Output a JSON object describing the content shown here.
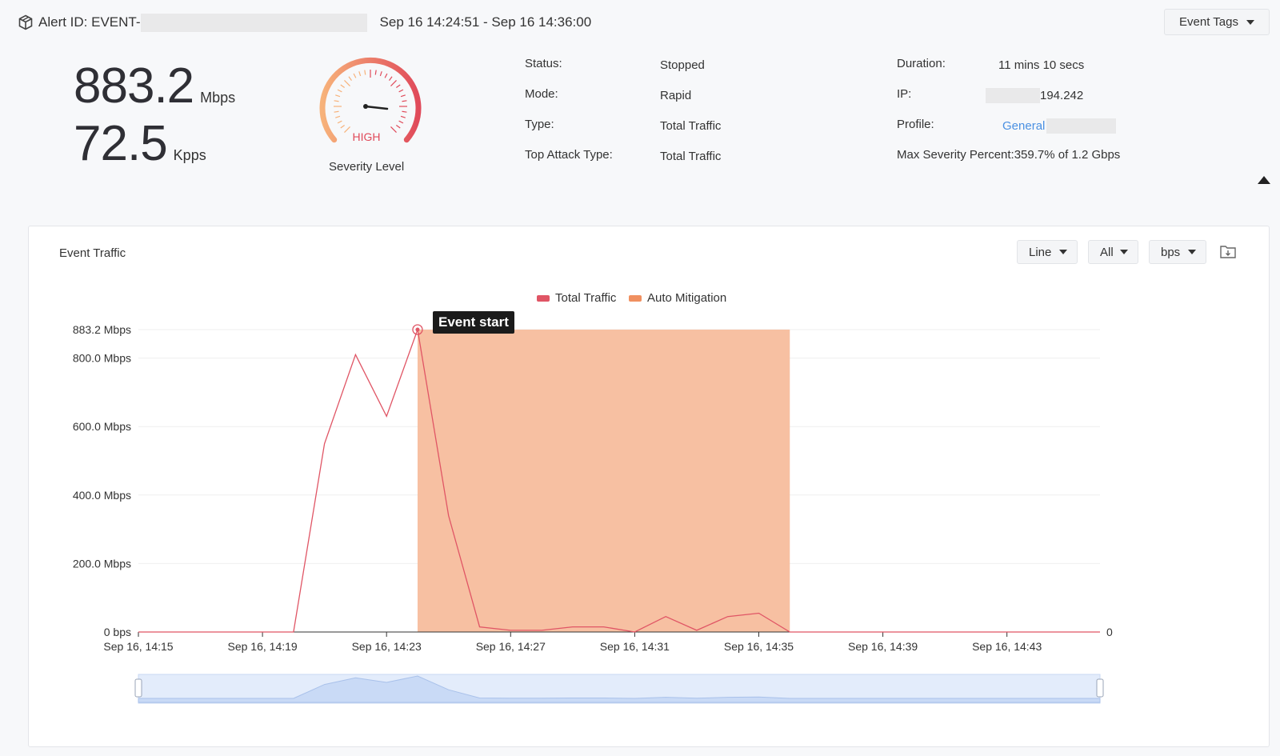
{
  "header": {
    "alert_label": "Alert ID: EVENT-",
    "time_range": "Sep 16 14:24:51 - Sep 16 14:36:00",
    "event_tags_label": "Event Tags"
  },
  "metrics": {
    "bandwidth_value": "883.2",
    "bandwidth_unit": "Mbps",
    "packet_value": "72.5",
    "packet_unit": "Kpps"
  },
  "severity": {
    "level_text": "HIGH",
    "label": "Severity Level",
    "colors": {
      "start": "#f7b27a",
      "end": "#e04a5a"
    }
  },
  "details_left": [
    {
      "label": "Status:",
      "value": "Stopped"
    },
    {
      "label": "Mode:",
      "value": "Rapid"
    },
    {
      "label": "Type:",
      "value": "Total Traffic"
    },
    {
      "label": "Top Attack Type:",
      "value": "Total Traffic"
    }
  ],
  "details_right": {
    "duration_label": "Duration:",
    "duration_value": "11 mins 10 secs",
    "ip_label": "IP:",
    "ip_value": "194.242",
    "profile_label": "Profile:",
    "profile_value": "General",
    "max_severity": "Max Severity Percent:359.7% of 1.2 Gbps"
  },
  "panel": {
    "title": "Event Traffic",
    "chart_type_select": "Line",
    "filter_select": "All",
    "unit_select": "bps",
    "download_icon": "download-folder-icon"
  },
  "tooltip": {
    "text": "Event start"
  },
  "chart_data": {
    "type": "line",
    "legend": [
      {
        "name": "Total Traffic",
        "color": "#e05565"
      },
      {
        "name": "Auto Mitigation",
        "color": "#f09060"
      }
    ],
    "x_tick_labels": [
      "Sep 16, 14:15",
      "Sep 16, 14:19",
      "Sep 16, 14:23",
      "Sep 16, 14:27",
      "Sep 16, 14:31",
      "Sep 16, 14:35",
      "Sep 16, 14:39",
      "Sep 16, 14:43"
    ],
    "x_tick_minutes": [
      15,
      19,
      23,
      27,
      31,
      35,
      39,
      43
    ],
    "x_range": [
      15,
      46
    ],
    "y_ticks": [
      {
        "value": 0,
        "label": "0 bps"
      },
      {
        "value": 200,
        "label": "200.0 Mbps"
      },
      {
        "value": 400,
        "label": "400.0 Mbps"
      },
      {
        "value": 600,
        "label": "600.0 Mbps"
      },
      {
        "value": 800,
        "label": "800.0 Mbps"
      },
      {
        "value": 883.2,
        "label": "883.2 Mbps"
      }
    ],
    "ylim": [
      0,
      883.2
    ],
    "right_axis_label": "0",
    "series": [
      {
        "name": "Total Traffic",
        "unit": "Mbps",
        "x_minutes": [
          15,
          16,
          17,
          18,
          19,
          20,
          21,
          22,
          23,
          24,
          25,
          26,
          27,
          28,
          29,
          30,
          31,
          32,
          33,
          34,
          35,
          36,
          37,
          38,
          39,
          40,
          41,
          42,
          43,
          44,
          45,
          46
        ],
        "values": [
          0,
          0,
          0,
          0,
          0,
          0,
          550,
          810,
          630,
          883.2,
          340,
          15,
          5,
          5,
          15,
          15,
          0,
          45,
          5,
          45,
          55,
          0,
          0,
          0,
          0,
          0,
          0,
          0,
          0,
          0,
          0,
          0
        ]
      }
    ],
    "mitigation": {
      "name": "Auto Mitigation",
      "start_minute": 24,
      "end_minute": 36,
      "level": 883.2
    },
    "event_start": {
      "minute": 24,
      "value": 883.2
    }
  }
}
